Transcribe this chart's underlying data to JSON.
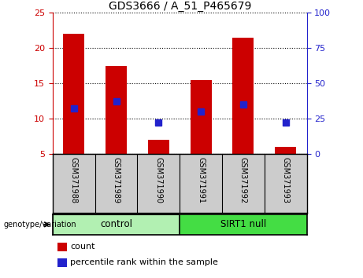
{
  "title": "GDS3666 / A_51_P465679",
  "categories": [
    "GSM371988",
    "GSM371989",
    "GSM371990",
    "GSM371991",
    "GSM371992",
    "GSM371993"
  ],
  "count_values": [
    22,
    17.5,
    7,
    15.5,
    21.5,
    6
  ],
  "count_base": 5,
  "percentile_values": [
    11.5,
    12.5,
    9.5,
    11,
    12,
    9.5
  ],
  "ylim_left": [
    5,
    25
  ],
  "ylim_right": [
    0,
    100
  ],
  "yticks_left": [
    5,
    10,
    15,
    20,
    25
  ],
  "yticks_right": [
    0,
    25,
    50,
    75,
    100
  ],
  "bar_color": "#cc0000",
  "dot_color": "#2222cc",
  "bar_width": 0.5,
  "control_label": "control",
  "sirt1_label": "SIRT1 null",
  "group_label": "genotype/variation",
  "legend_count": "count",
  "legend_pct": "percentile rank within the sample",
  "control_color": "#b2f0b2",
  "sirt1_color": "#44dd44",
  "xticklabel_color": "#cccccc",
  "left_tick_color": "#cc0000",
  "right_tick_color": "#2222cc",
  "title_fontsize": 10,
  "axis_fontsize": 8,
  "legend_fontsize": 8,
  "xlabel_fontsize": 7,
  "group_fontsize": 8.5,
  "dot_markersize": 6
}
